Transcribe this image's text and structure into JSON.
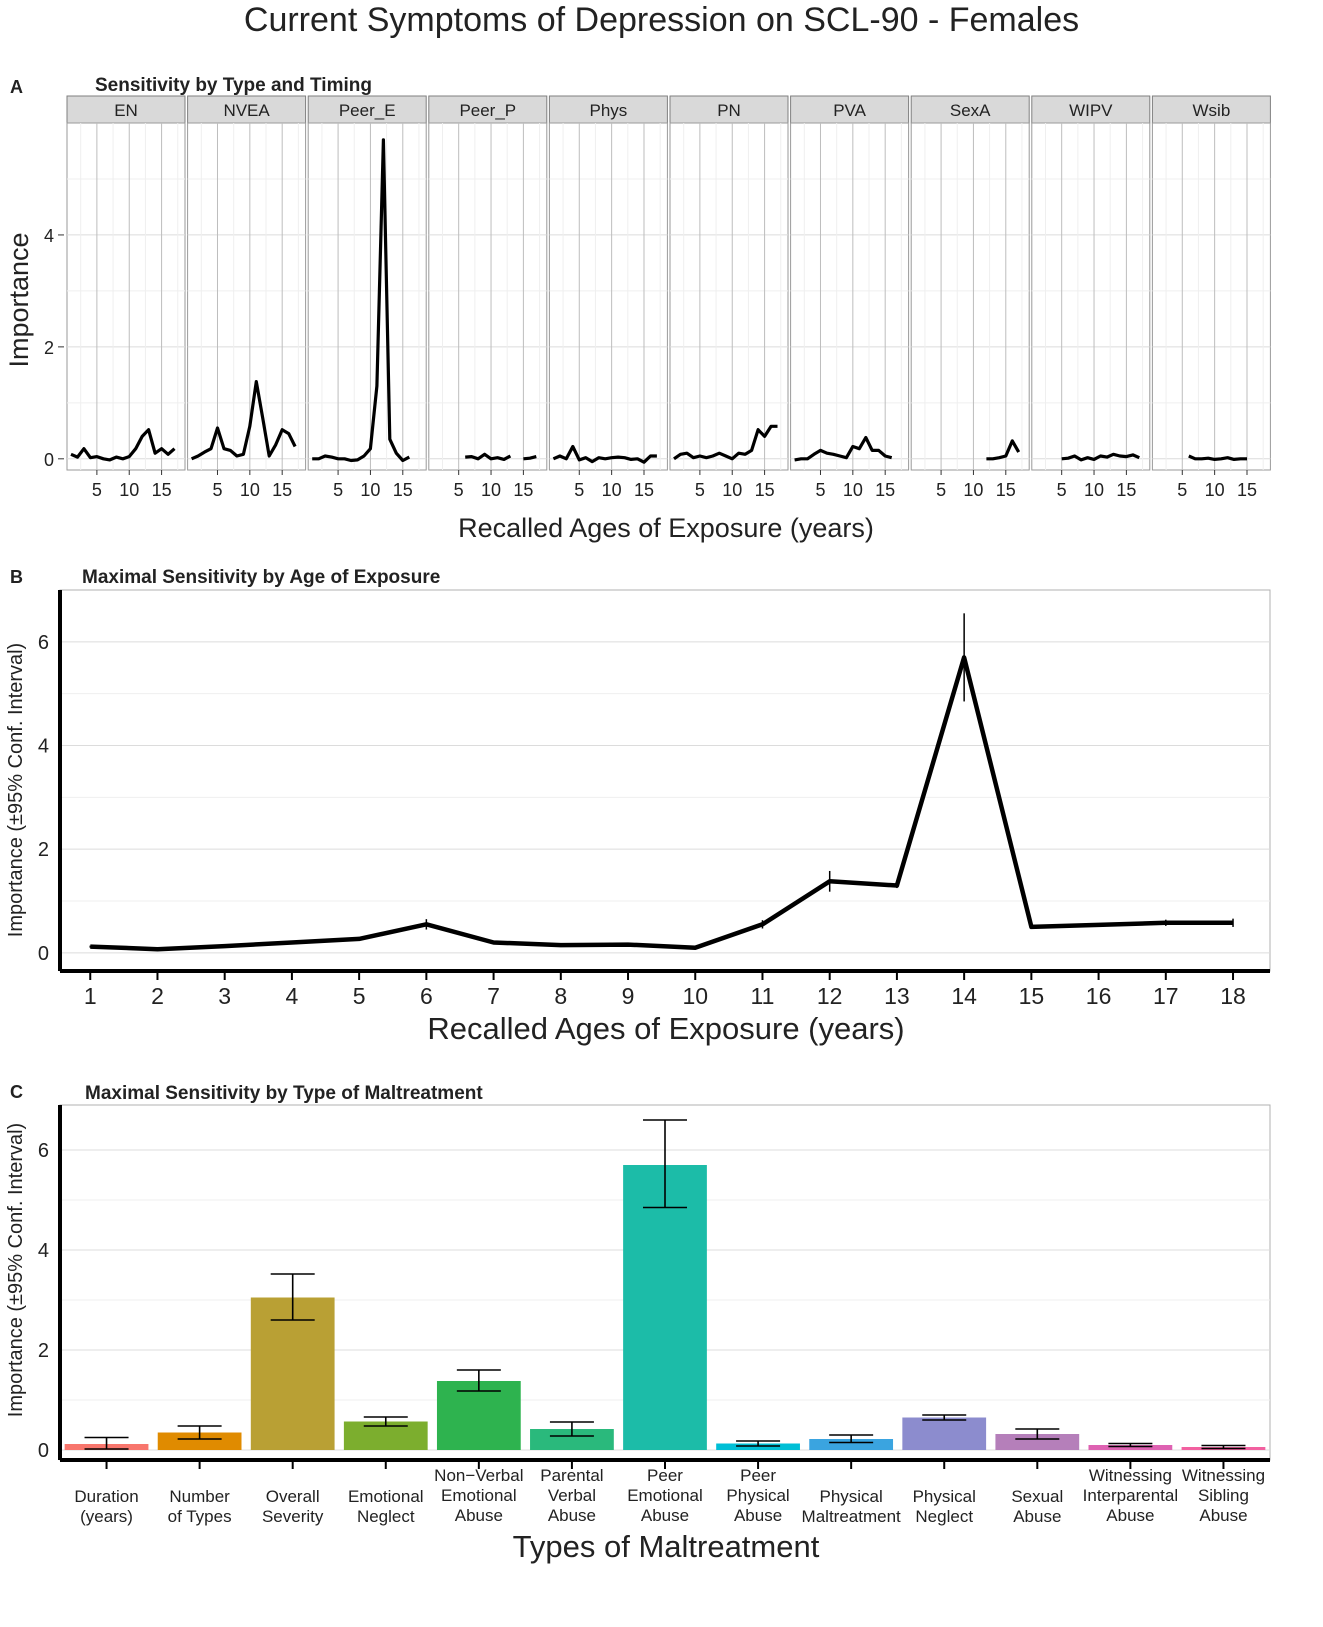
{
  "figure": {
    "title": "Current Symptoms of Depression on SCL-90 - Females"
  },
  "colors": {
    "line": "#000000",
    "grid": "#dcdcdc",
    "gridMinor": "#efefef",
    "stripFill": "#d9d9d9",
    "stripBorder": "#7f7f7f"
  },
  "chart_data": [
    {
      "panel_label": "A",
      "type": "line",
      "title": "Sensitivity by Type and Timing",
      "xlabel": "Recalled Ages of Exposure (years)",
      "ylabel": "Importance",
      "xlim": [
        1,
        18
      ],
      "ylim": [
        -0.2,
        6.0
      ],
      "xticks": [
        5,
        10,
        15
      ],
      "yticks": [
        0,
        2,
        4
      ],
      "grid": true,
      "facets": [
        {
          "name": "EN",
          "segments": [
            [
              [
                1,
                0.08
              ],
              [
                2,
                0.03
              ],
              [
                3,
                0.18
              ],
              [
                4,
                0.02
              ],
              [
                5,
                0.04
              ],
              [
                6,
                0.0
              ],
              [
                7,
                -0.02
              ],
              [
                8,
                0.03
              ],
              [
                9,
                0.0
              ],
              [
                10,
                0.04
              ],
              [
                11,
                0.18
              ],
              [
                12,
                0.4
              ],
              [
                13,
                0.52
              ],
              [
                14,
                0.1
              ],
              [
                15,
                0.18
              ],
              [
                16,
                0.08
              ],
              [
                17,
                0.18
              ]
            ]
          ]
        },
        {
          "name": "NVEA",
          "segments": [
            [
              [
                1,
                0.0
              ],
              [
                2,
                0.05
              ],
              [
                3,
                0.12
              ],
              [
                4,
                0.18
              ],
              [
                5,
                0.55
              ],
              [
                6,
                0.18
              ],
              [
                7,
                0.15
              ],
              [
                8,
                0.05
              ],
              [
                9,
                0.08
              ],
              [
                10,
                0.58
              ],
              [
                11,
                1.38
              ],
              [
                12,
                0.72
              ],
              [
                13,
                0.05
              ],
              [
                14,
                0.25
              ],
              [
                15,
                0.52
              ],
              [
                16,
                0.45
              ],
              [
                17,
                0.22
              ]
            ]
          ]
        },
        {
          "name": "Peer_E",
          "segments": [
            [
              [
                1,
                0.0
              ],
              [
                2,
                0.0
              ],
              [
                3,
                0.05
              ],
              [
                4,
                0.03
              ],
              [
                5,
                0.0
              ],
              [
                6,
                0.0
              ],
              [
                7,
                -0.03
              ],
              [
                8,
                -0.02
              ],
              [
                9,
                0.05
              ],
              [
                10,
                0.18
              ],
              [
                11,
                1.3
              ],
              [
                12,
                5.7
              ],
              [
                13,
                0.35
              ],
              [
                14,
                0.1
              ],
              [
                15,
                -0.03
              ],
              [
                16,
                0.03
              ]
            ]
          ]
        },
        {
          "name": "Peer_P",
          "segments": [
            [
              [
                6,
                0.03
              ],
              [
                7,
                0.04
              ],
              [
                8,
                0.0
              ],
              [
                9,
                0.08
              ],
              [
                10,
                0.0
              ],
              [
                11,
                0.02
              ],
              [
                12,
                -0.01
              ],
              [
                13,
                0.05
              ]
            ],
            [
              [
                15,
                0.0
              ],
              [
                16,
                0.01
              ],
              [
                17,
                0.04
              ]
            ]
          ]
        },
        {
          "name": "Phys",
          "segments": [
            [
              [
                1,
                0.0
              ],
              [
                2,
                0.05
              ],
              [
                3,
                0.0
              ],
              [
                4,
                0.22
              ],
              [
                5,
                -0.02
              ],
              [
                6,
                0.02
              ],
              [
                7,
                -0.05
              ],
              [
                8,
                0.02
              ],
              [
                9,
                0.0
              ],
              [
                10,
                0.02
              ],
              [
                11,
                0.03
              ],
              [
                12,
                0.02
              ],
              [
                13,
                -0.01
              ],
              [
                14,
                0.0
              ],
              [
                15,
                -0.06
              ],
              [
                16,
                0.05
              ],
              [
                17,
                0.05
              ]
            ]
          ]
        },
        {
          "name": "PN",
          "segments": [
            [
              [
                1,
                0.0
              ],
              [
                2,
                0.08
              ],
              [
                3,
                0.1
              ],
              [
                4,
                0.02
              ],
              [
                5,
                0.05
              ],
              [
                6,
                0.02
              ],
              [
                7,
                0.05
              ],
              [
                8,
                0.1
              ],
              [
                9,
                0.05
              ],
              [
                10,
                0.0
              ],
              [
                11,
                0.1
              ],
              [
                12,
                0.08
              ],
              [
                13,
                0.15
              ],
              [
                14,
                0.52
              ],
              [
                15,
                0.4
              ],
              [
                16,
                0.58
              ],
              [
                17,
                0.58
              ]
            ]
          ]
        },
        {
          "name": "PVA",
          "segments": [
            [
              [
                1,
                -0.02
              ],
              [
                2,
                0.0
              ],
              [
                3,
                0.0
              ],
              [
                4,
                0.08
              ],
              [
                5,
                0.15
              ],
              [
                6,
                0.1
              ],
              [
                7,
                0.08
              ],
              [
                8,
                0.05
              ],
              [
                9,
                0.02
              ],
              [
                10,
                0.22
              ],
              [
                11,
                0.18
              ],
              [
                12,
                0.38
              ],
              [
                13,
                0.15
              ],
              [
                14,
                0.15
              ],
              [
                15,
                0.05
              ],
              [
                16,
                0.02
              ]
            ]
          ]
        },
        {
          "name": "SexA",
          "segments": [
            [
              [
                12,
                0.0
              ],
              [
                13,
                0.0
              ],
              [
                14,
                0.02
              ],
              [
                15,
                0.05
              ],
              [
                16,
                0.32
              ],
              [
                17,
                0.12
              ]
            ]
          ]
        },
        {
          "name": "WIPV",
          "segments": [
            [
              [
                5,
                0.0
              ],
              [
                6,
                0.01
              ],
              [
                7,
                0.05
              ],
              [
                8,
                -0.02
              ],
              [
                9,
                0.02
              ],
              [
                10,
                -0.01
              ],
              [
                11,
                0.05
              ],
              [
                12,
                0.03
              ],
              [
                13,
                0.08
              ],
              [
                14,
                0.05
              ],
              [
                15,
                0.04
              ],
              [
                16,
                0.07
              ],
              [
                17,
                0.02
              ]
            ]
          ]
        },
        {
          "name": "Wsib",
          "segments": [
            [
              [
                6,
                0.05
              ],
              [
                7,
                0.0
              ],
              [
                8,
                0.0
              ],
              [
                9,
                0.01
              ],
              [
                10,
                -0.01
              ],
              [
                11,
                0.0
              ],
              [
                12,
                0.02
              ],
              [
                13,
                -0.01
              ],
              [
                14,
                0.0
              ],
              [
                15,
                0.0
              ]
            ]
          ]
        }
      ]
    },
    {
      "panel_label": "B",
      "type": "line",
      "title": "Maximal Sensitivity by Age of Exposure",
      "xlabel": "Recalled Ages of Exposure (years)",
      "ylabel": "Importance (±95% Conf. Interval)",
      "xlim": [
        0.55,
        18.55
      ],
      "ylim": [
        -0.35,
        7.0
      ],
      "yticks": [
        0,
        2,
        4,
        6
      ],
      "grid": true,
      "points": [
        {
          "x": 1,
          "y": 0.12,
          "lo": 0.1,
          "hi": 0.14
        },
        {
          "x": 2,
          "y": 0.07,
          "lo": 0.06,
          "hi": 0.08
        },
        {
          "x": 3,
          "y": 0.13,
          "lo": 0.12,
          "hi": 0.14
        },
        {
          "x": 4,
          "y": 0.2,
          "lo": 0.18,
          "hi": 0.22
        },
        {
          "x": 5,
          "y": 0.27,
          "lo": 0.25,
          "hi": 0.29
        },
        {
          "x": 6,
          "y": 0.55,
          "lo": 0.45,
          "hi": 0.65
        },
        {
          "x": 7,
          "y": 0.2,
          "lo": 0.18,
          "hi": 0.22
        },
        {
          "x": 8,
          "y": 0.15,
          "lo": 0.13,
          "hi": 0.17
        },
        {
          "x": 9,
          "y": 0.16,
          "lo": 0.14,
          "hi": 0.18
        },
        {
          "x": 10,
          "y": 0.1,
          "lo": 0.08,
          "hi": 0.12
        },
        {
          "x": 11,
          "y": 0.55,
          "lo": 0.47,
          "hi": 0.63
        },
        {
          "x": 12,
          "y": 1.38,
          "lo": 1.18,
          "hi": 1.58
        },
        {
          "x": 13,
          "y": 1.3,
          "lo": 1.25,
          "hi": 1.35
        },
        {
          "x": 14,
          "y": 5.7,
          "lo": 4.85,
          "hi": 6.55
        },
        {
          "x": 15,
          "y": 0.5,
          "lo": 0.47,
          "hi": 0.53
        },
        {
          "x": 16,
          "y": 0.54,
          "lo": 0.51,
          "hi": 0.57
        },
        {
          "x": 17,
          "y": 0.58,
          "lo": 0.52,
          "hi": 0.64
        },
        {
          "x": 18,
          "y": 0.58,
          "lo": 0.5,
          "hi": 0.66
        }
      ]
    },
    {
      "panel_label": "C",
      "type": "bar",
      "title": "Maximal Sensitivity by Type of Maltreatment",
      "xlabel": "Types of Maltreatment",
      "ylabel": "Importance (±95% Conf. Interval)",
      "ylim": [
        -0.2,
        6.9
      ],
      "yticks": [
        0,
        2,
        4,
        6
      ],
      "grid": true,
      "categories": [
        "Duration\n(years)",
        "Number\nof Types",
        "Overall\nSeverity",
        "Emotional\nNeglect",
        "Non−Verbal\nEmotional\nAbuse",
        "Parental\nVerbal\nAbuse",
        "Peer\nEmotional\nAbuse",
        "Peer\nPhysical\nAbuse",
        "Physical\nMaltreatment",
        "Physical\nNeglect",
        "Sexual\nAbuse",
        "Witnessing\nInterparental\nAbuse",
        "Witnessing\nSibling\nAbuse"
      ],
      "values": [
        0.12,
        0.35,
        3.05,
        0.57,
        1.38,
        0.42,
        5.7,
        0.13,
        0.22,
        0.65,
        0.32,
        0.1,
        0.06
      ],
      "ci_lo": [
        0.02,
        0.22,
        2.6,
        0.48,
        1.18,
        0.28,
        4.85,
        0.08,
        0.15,
        0.6,
        0.22,
        0.07,
        0.03
      ],
      "ci_hi": [
        0.25,
        0.48,
        3.52,
        0.66,
        1.6,
        0.56,
        6.6,
        0.18,
        0.3,
        0.7,
        0.42,
        0.13,
        0.09
      ],
      "colors": [
        "#F8766D",
        "#E08B00",
        "#B9A034",
        "#7CAE2E",
        "#2EB34F",
        "#2AB97C",
        "#1CBCA8",
        "#00BFD6",
        "#3AA4E0",
        "#8C8CCE",
        "#B57FBA",
        "#DE62B2",
        "#F260A0"
      ]
    }
  ]
}
